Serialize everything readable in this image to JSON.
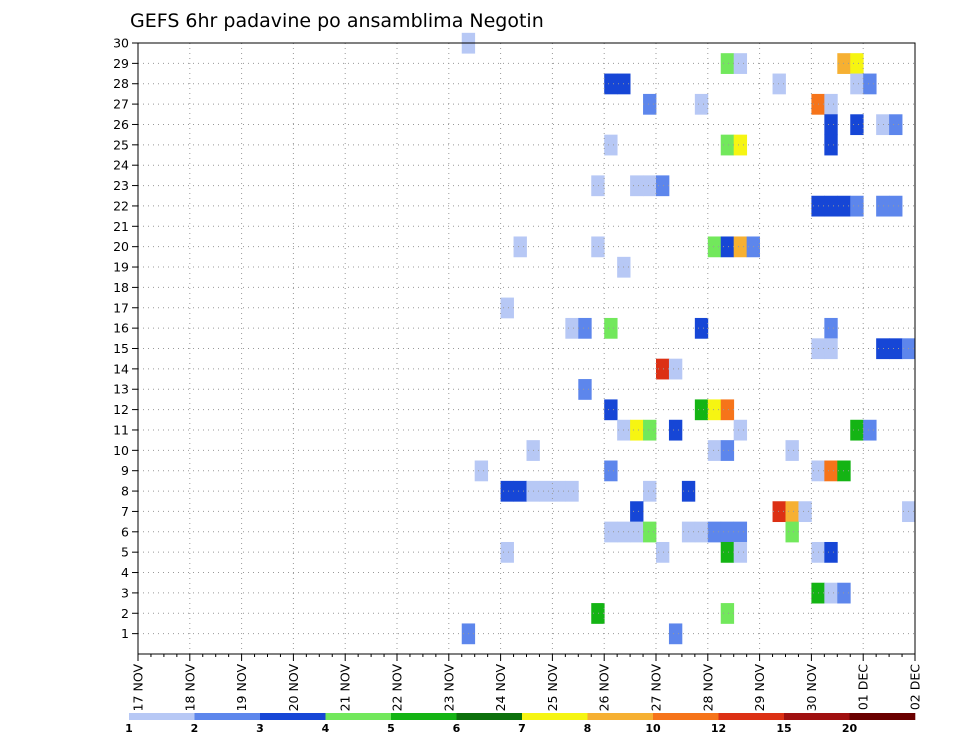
{
  "chart_data": {
    "type": "heatmap",
    "title": "GEFS 6hr padavine po ansamblima Negotin",
    "xlabel": "",
    "ylabel": "",
    "x_ticks": [
      "17 NOV",
      "18 NOV",
      "19 NOV",
      "20 NOV",
      "21 NOV",
      "22 NOV",
      "23 NOV",
      "24 NOV",
      "25 NOV",
      "26 NOV",
      "27 NOV",
      "28 NOV",
      "29 NOV",
      "30 NOV",
      "01 DEC",
      "02 DEC"
    ],
    "y_ticks": [
      "1",
      "2",
      "3",
      "4",
      "5",
      "6",
      "7",
      "8",
      "9",
      "10",
      "11",
      "12",
      "13",
      "14",
      "15",
      "16",
      "17",
      "18",
      "19",
      "20",
      "21",
      "22",
      "23",
      "24",
      "25",
      "26",
      "27",
      "28",
      "29",
      "30"
    ],
    "xlim": [
      0,
      60
    ],
    "ylim": [
      0,
      30
    ],
    "grid": true,
    "legend": {
      "placement": "bottom",
      "colors": [
        "#b7c8f5",
        "#5d86ec",
        "#1646d6",
        "#72e85c",
        "#14b414",
        "#0c700c",
        "#f6f512",
        "#f6b032",
        "#f6741a",
        "#dc3014",
        "#a01010",
        "#6a0000"
      ],
      "labels": [
        "1",
        "2",
        "3",
        "4",
        "5",
        "6",
        "7",
        "8",
        "10",
        "12",
        "15",
        "20"
      ]
    },
    "bins": [
      {
        "min": 1,
        "color": "#b7c8f5"
      },
      {
        "min": 2,
        "color": "#5d86ec"
      },
      {
        "min": 3,
        "color": "#1646d6"
      },
      {
        "min": 4,
        "color": "#72e85c"
      },
      {
        "min": 5,
        "color": "#14b414"
      },
      {
        "min": 6,
        "color": "#0c700c"
      },
      {
        "min": 7,
        "color": "#f6f512"
      },
      {
        "min": 8,
        "color": "#f6b032"
      },
      {
        "min": 10,
        "color": "#f6741a"
      },
      {
        "min": 12,
        "color": "#dc3014"
      },
      {
        "min": 15,
        "color": "#a01010"
      },
      {
        "min": 20,
        "color": "#6a0000"
      }
    ],
    "cells": [
      [
        25.5,
        30,
        1.5
      ],
      [
        45.5,
        29,
        4.5
      ],
      [
        46.5,
        29,
        1.5
      ],
      [
        54.5,
        29,
        9
      ],
      [
        55.5,
        29,
        7.5
      ],
      [
        36.5,
        28,
        3.5
      ],
      [
        37.5,
        28,
        3.5
      ],
      [
        49.5,
        28,
        1.5
      ],
      [
        55.5,
        28,
        1.5
      ],
      [
        56.5,
        28,
        2.5
      ],
      [
        39.5,
        27,
        2.5
      ],
      [
        43.5,
        27,
        1.5
      ],
      [
        52.5,
        27,
        10.5
      ],
      [
        53.5,
        27,
        1.5
      ],
      [
        53.5,
        26,
        3.5
      ],
      [
        55.5,
        26,
        3.5
      ],
      [
        57.5,
        26,
        1.5
      ],
      [
        58.5,
        26,
        2.5
      ],
      [
        36.5,
        25,
        1.5
      ],
      [
        45.5,
        25,
        4.5
      ],
      [
        46.5,
        25,
        7.5
      ],
      [
        53.5,
        25,
        3.5
      ],
      [
        35.5,
        23,
        1.5
      ],
      [
        38.5,
        23,
        1.5
      ],
      [
        39.5,
        23,
        1.5
      ],
      [
        40.5,
        23,
        2.5
      ],
      [
        52.5,
        22,
        3.5
      ],
      [
        53.5,
        22,
        3.5
      ],
      [
        54.5,
        22,
        3.5
      ],
      [
        55.5,
        22,
        2.5
      ],
      [
        57.5,
        22,
        2.5
      ],
      [
        58.5,
        22,
        2.5
      ],
      [
        29.5,
        20,
        1.5
      ],
      [
        35.5,
        20,
        1.5
      ],
      [
        44.5,
        20,
        4.5
      ],
      [
        45.5,
        20,
        3.5
      ],
      [
        46.5,
        20,
        9
      ],
      [
        47.5,
        20,
        2.5
      ],
      [
        37.5,
        19,
        1.5
      ],
      [
        28.5,
        17,
        1.5
      ],
      [
        33.5,
        16,
        1.5
      ],
      [
        34.5,
        16,
        2.5
      ],
      [
        36.5,
        16,
        4.5
      ],
      [
        43.5,
        16,
        3.5
      ],
      [
        53.5,
        16,
        2.5
      ],
      [
        52.5,
        15,
        1.5
      ],
      [
        53.5,
        15,
        1.5
      ],
      [
        57.5,
        15,
        3.5
      ],
      [
        58.5,
        15,
        3.5
      ],
      [
        59.5,
        15,
        2.5
      ],
      [
        40.5,
        14,
        13
      ],
      [
        41.5,
        14,
        1.5
      ],
      [
        34.5,
        13,
        2.5
      ],
      [
        36.5,
        12,
        3.5
      ],
      [
        43.5,
        12,
        5.5
      ],
      [
        44.5,
        12,
        7.5
      ],
      [
        45.5,
        12,
        10.5
      ],
      [
        37.5,
        11,
        1.5
      ],
      [
        38.5,
        11,
        7.5
      ],
      [
        39.5,
        11,
        4.5
      ],
      [
        41.5,
        11,
        3.5
      ],
      [
        46.5,
        11,
        1.5
      ],
      [
        55.5,
        11,
        5.5
      ],
      [
        56.5,
        11,
        2.5
      ],
      [
        30.5,
        10,
        1.5
      ],
      [
        44.5,
        10,
        1.5
      ],
      [
        45.5,
        10,
        2.5
      ],
      [
        50.5,
        10,
        1.5
      ],
      [
        26.5,
        9,
        1.5
      ],
      [
        36.5,
        9,
        2.5
      ],
      [
        52.5,
        9,
        1.5
      ],
      [
        53.5,
        9,
        10.5
      ],
      [
        54.5,
        9,
        5.5
      ],
      [
        28.5,
        8,
        3.5
      ],
      [
        29.5,
        8,
        3.5
      ],
      [
        30.5,
        8,
        1.5
      ],
      [
        31.5,
        8,
        1.5
      ],
      [
        32.5,
        8,
        1.5
      ],
      [
        33.5,
        8,
        1.5
      ],
      [
        39.5,
        8,
        1.5
      ],
      [
        42.5,
        8,
        3.5
      ],
      [
        38.5,
        7,
        3.5
      ],
      [
        49.5,
        7,
        13
      ],
      [
        50.5,
        7,
        9
      ],
      [
        51.5,
        7,
        1.5
      ],
      [
        59.5,
        7,
        1.5
      ],
      [
        36.5,
        6,
        1.5
      ],
      [
        37.5,
        6,
        1.5
      ],
      [
        38.5,
        6,
        1.5
      ],
      [
        39.5,
        6,
        4.5
      ],
      [
        42.5,
        6,
        1.5
      ],
      [
        43.5,
        6,
        1.5
      ],
      [
        44.5,
        6,
        2.5
      ],
      [
        45.5,
        6,
        2.5
      ],
      [
        46.5,
        6,
        2.5
      ],
      [
        50.5,
        6,
        4.5
      ],
      [
        28.5,
        5,
        1.5
      ],
      [
        40.5,
        5,
        1.5
      ],
      [
        45.5,
        5,
        5.5
      ],
      [
        46.5,
        5,
        1.5
      ],
      [
        52.5,
        5,
        1.5
      ],
      [
        53.5,
        5,
        3.5
      ],
      [
        52.5,
        3,
        5.5
      ],
      [
        53.5,
        3,
        1.5
      ],
      [
        54.5,
        3,
        2.5
      ],
      [
        35.5,
        2,
        5.5
      ],
      [
        45.5,
        2,
        4.5
      ],
      [
        25.5,
        1,
        2.5
      ],
      [
        41.5,
        1,
        2.5
      ]
    ]
  }
}
